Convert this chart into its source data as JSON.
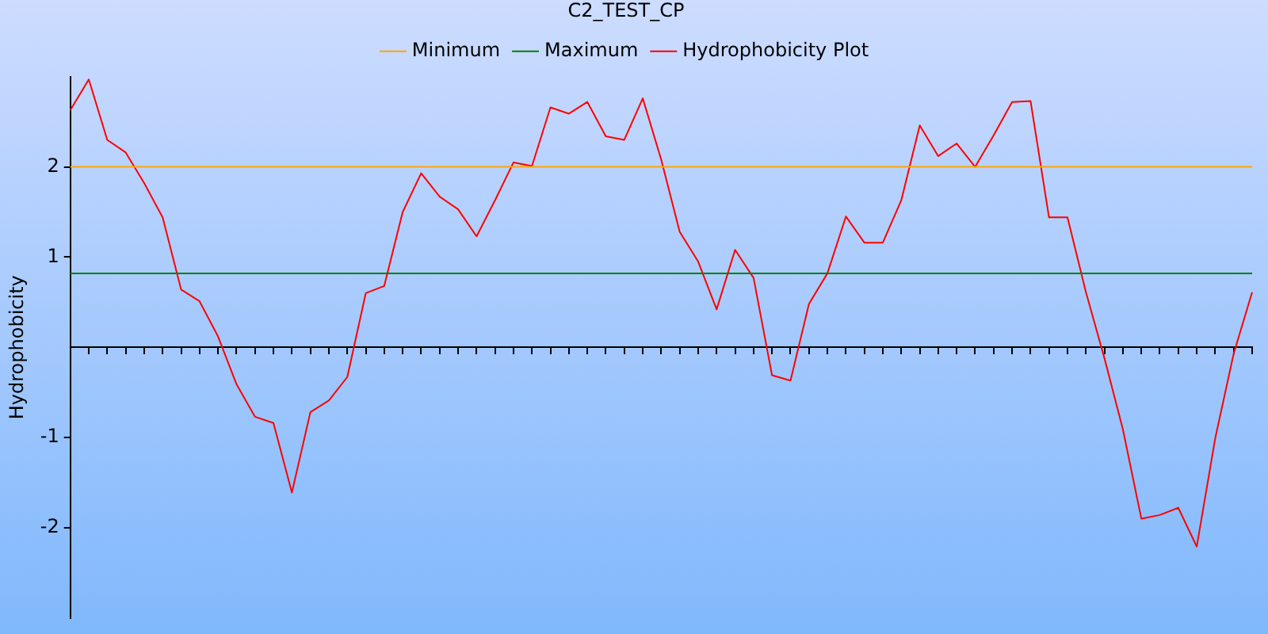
{
  "chart_data": {
    "type": "line",
    "title": "C2_TEST_CP",
    "ylabel": "Hydrophobicity",
    "categories": [
      null,
      null,
      null,
      null,
      null,
      null,
      null,
      null,
      null,
      null,
      null,
      null,
      null,
      null,
      null,
      null,
      null,
      null,
      null,
      null,
      null,
      null,
      null,
      null,
      null,
      null,
      null,
      null,
      null,
      null,
      null,
      null,
      null,
      null,
      null,
      null,
      null,
      null,
      null,
      null,
      null,
      null,
      null,
      null,
      null,
      null,
      null,
      null,
      null,
      null,
      null,
      null,
      null,
      null,
      null,
      null,
      null,
      null,
      null,
      null,
      null,
      null,
      null,
      null,
      null
    ],
    "series": [
      {
        "name": "Minimum",
        "color": "#ffa500",
        "values": [
          2,
          2,
          2,
          2,
          2,
          2,
          2,
          2,
          2,
          2,
          2,
          2,
          2,
          2,
          2,
          2,
          2,
          2,
          2,
          2,
          2,
          2,
          2,
          2,
          2,
          2,
          2,
          2,
          2,
          2,
          2,
          2,
          2,
          2,
          2,
          2,
          2,
          2,
          2,
          2,
          2,
          2,
          2,
          2,
          2,
          2,
          2,
          2,
          2,
          2,
          2,
          2,
          2,
          2,
          2,
          2,
          2,
          2,
          2,
          2,
          2,
          2,
          2,
          2,
          2
        ]
      },
      {
        "name": "Maximum",
        "color": "#008000",
        "values": [
          0.82,
          0.82,
          0.82,
          0.82,
          0.82,
          0.82,
          0.82,
          0.82,
          0.82,
          0.82,
          0.82,
          0.82,
          0.82,
          0.82,
          0.82,
          0.82,
          0.82,
          0.82,
          0.82,
          0.82,
          0.82,
          0.82,
          0.82,
          0.82,
          0.82,
          0.82,
          0.82,
          0.82,
          0.82,
          0.82,
          0.82,
          0.82,
          0.82,
          0.82,
          0.82,
          0.82,
          0.82,
          0.82,
          0.82,
          0.82,
          0.82,
          0.82,
          0.82,
          0.82,
          0.82,
          0.82,
          0.82,
          0.82,
          0.82,
          0.82,
          0.82,
          0.82,
          0.82,
          0.82,
          0.82,
          0.82,
          0.82,
          0.82,
          0.82,
          0.82,
          0.82,
          0.82,
          0.82,
          0.82,
          0.82
        ]
      },
      {
        "name": "Hydrophobicity Plot",
        "color": "#ff0000",
        "values": [
          2.63,
          2.97,
          2.3,
          2.16,
          1.82,
          1.44,
          0.64,
          0.51,
          0.12,
          -0.41,
          -0.77,
          -0.84,
          -1.61,
          -0.72,
          -0.59,
          -0.33,
          0.6,
          0.68,
          1.5,
          1.93,
          1.67,
          1.53,
          1.23,
          1.63,
          2.05,
          2.01,
          2.66,
          2.59,
          2.72,
          2.34,
          2.3,
          2.76,
          2.08,
          1.28,
          0.95,
          0.42,
          1.08,
          0.77,
          -0.31,
          -0.37,
          0.48,
          0.82,
          1.45,
          1.16,
          1.16,
          1.63,
          2.46,
          2.12,
          2.26,
          2.0,
          2.35,
          2.72,
          2.73,
          1.44,
          1.44,
          0.61,
          -0.12,
          -0.91,
          -1.9,
          -1.86,
          -1.78,
          -2.21,
          -1.01,
          -0.07,
          0.61
        ]
      }
    ],
    "ylim": [
      -3,
      3
    ],
    "yticks": [
      -2,
      -1,
      1,
      2
    ],
    "tick_labels": "y",
    "legend": "top",
    "marker": "none",
    "line_style": "solid"
  }
}
